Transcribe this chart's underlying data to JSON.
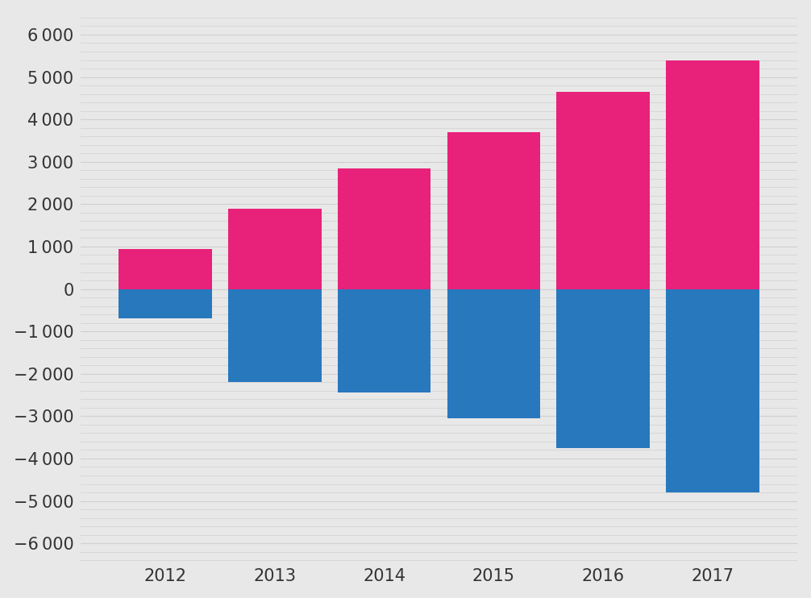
{
  "years": [
    2012,
    2013,
    2014,
    2015,
    2016,
    2017
  ],
  "positive_values": [
    950,
    1900,
    2850,
    3700,
    4650,
    5400
  ],
  "negative_values": [
    -700,
    -2200,
    -2450,
    -3050,
    -3750,
    -4800
  ],
  "positive_color": "#E8217A",
  "negative_color": "#2878BE",
  "background_color": "#E8E8E8",
  "grid_color": "#D0D0D0",
  "ylim": [
    -6500,
    6500
  ],
  "yticks": [
    -6000,
    -5000,
    -4000,
    -3000,
    -2000,
    -1000,
    0,
    1000,
    2000,
    3000,
    4000,
    5000,
    6000
  ],
  "minor_yticks_step": 200,
  "bar_width": 0.85,
  "tick_fontsize": 15,
  "label_color": "#333333"
}
